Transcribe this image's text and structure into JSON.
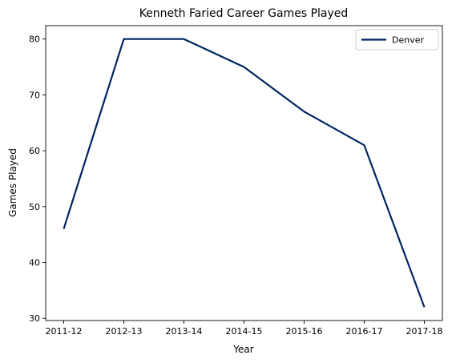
{
  "chart_data": {
    "type": "line",
    "title": "Kenneth Faried Career Games Played",
    "xlabel": "Year",
    "ylabel": "Games Played",
    "categories": [
      "2011-12",
      "2012-13",
      "2013-14",
      "2014-15",
      "2015-16",
      "2016-17",
      "2017-18"
    ],
    "series": [
      {
        "name": "Denver",
        "color": "#002661",
        "values": [
          46,
          80,
          80,
          75,
          67,
          61,
          32
        ]
      }
    ],
    "ylim": [
      29.6,
      82.4
    ],
    "yticks": [
      30,
      40,
      50,
      60,
      70,
      80
    ],
    "grid": false,
    "legend_position": "top-right"
  }
}
